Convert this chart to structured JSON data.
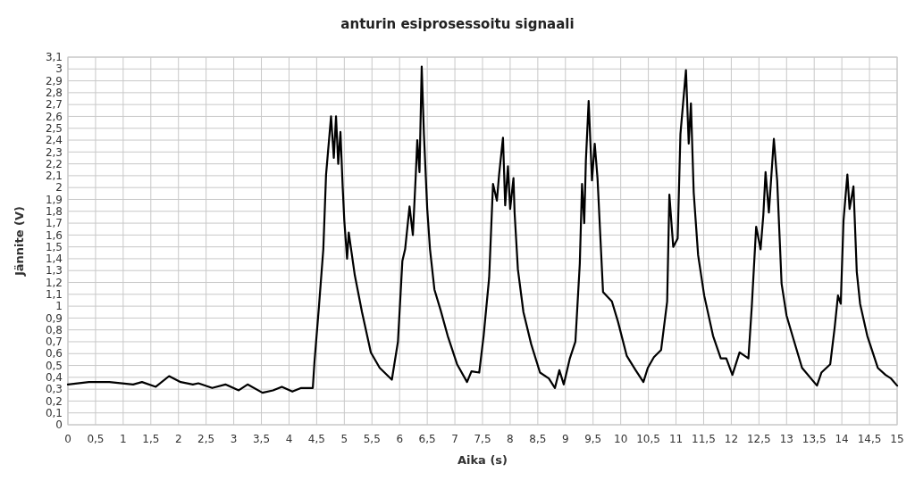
{
  "chart_data": {
    "type": "line",
    "title": "anturin esiprosessoitu signaali",
    "xlabel": "Aika (s)",
    "ylabel": "Jännite (V)",
    "xlim": [
      0,
      15
    ],
    "ylim": [
      0,
      3.1
    ],
    "grid": true,
    "marker": "none",
    "line_style": "solid",
    "xticks": [
      0,
      {
        "value": 0.5,
        "label": "0,5"
      },
      1,
      {
        "value": 1.5,
        "label": "1,5"
      },
      2,
      {
        "value": 2.5,
        "label": "2,5"
      },
      3,
      {
        "value": 3.5,
        "label": "3,5"
      },
      4,
      {
        "value": 4.5,
        "label": "4,5"
      },
      5,
      {
        "value": 5.5,
        "label": "5,5"
      },
      6,
      {
        "value": 6.5,
        "label": "6,5"
      },
      7,
      {
        "value": 7.5,
        "label": "7,5"
      },
      8,
      {
        "value": 8.5,
        "label": "8,5"
      },
      9,
      {
        "value": 9.5,
        "label": "9,5"
      },
      10,
      {
        "value": 10.5,
        "label": "10,5"
      },
      11,
      {
        "value": 11.5,
        "label": "11,5"
      },
      12,
      {
        "value": 12.5,
        "label": "12,5"
      },
      13,
      {
        "value": 13.5,
        "label": "13,5"
      },
      14,
      {
        "value": 14.5,
        "label": "14,5"
      },
      15
    ],
    "yticks": [
      0,
      {
        "value": 0.1,
        "label": "0,1"
      },
      {
        "value": 0.2,
        "label": "0,2"
      },
      {
        "value": 0.3,
        "label": "0,3"
      },
      {
        "value": 0.4,
        "label": "0,4"
      },
      {
        "value": 0.5,
        "label": "0,5"
      },
      {
        "value": 0.6,
        "label": "0,6"
      },
      {
        "value": 0.7,
        "label": "0,7"
      },
      {
        "value": 0.8,
        "label": "0,8"
      },
      {
        "value": 0.9,
        "label": "0,9"
      },
      1,
      {
        "value": 1.1,
        "label": "1,1"
      },
      {
        "value": 1.2,
        "label": "1,2"
      },
      {
        "value": 1.3,
        "label": "1,3"
      },
      {
        "value": 1.4,
        "label": "1,4"
      },
      {
        "value": 1.5,
        "label": "1,5"
      },
      {
        "value": 1.6,
        "label": "1,6"
      },
      {
        "value": 1.7,
        "label": "1,7"
      },
      {
        "value": 1.8,
        "label": "1,8"
      },
      {
        "value": 1.9,
        "label": "1,9"
      },
      2,
      {
        "value": 2.1,
        "label": "2,1"
      },
      {
        "value": 2.2,
        "label": "2,2"
      },
      {
        "value": 2.3,
        "label": "2,3"
      },
      {
        "value": 2.4,
        "label": "2,4"
      },
      {
        "value": 2.5,
        "label": "2,5"
      },
      {
        "value": 2.6,
        "label": "2,6"
      },
      {
        "value": 2.7,
        "label": "2,7"
      },
      {
        "value": 2.8,
        "label": "2,8"
      },
      {
        "value": 2.9,
        "label": "2,9"
      },
      3,
      {
        "value": 3.1,
        "label": "3,1"
      }
    ],
    "series": [
      {
        "color": "#000000",
        "x": [
          0,
          0.38,
          0.75,
          1.18,
          1.34,
          1.59,
          1.83,
          2.04,
          2.26,
          2.36,
          2.61,
          2.85,
          3.09,
          3.25,
          3.52,
          3.71,
          3.87,
          4.06,
          4.22,
          4.43,
          4.46,
          4.54,
          4.62,
          4.67,
          4.76,
          4.81,
          4.85,
          4.89,
          4.93,
          4.97,
          5.0,
          5.05,
          5.08,
          5.19,
          5.32,
          5.48,
          5.64,
          5.86,
          5.97,
          6.05,
          6.1,
          6.18,
          6.24,
          6.29,
          6.32,
          6.36,
          6.4,
          6.44,
          6.5,
          6.55,
          6.63,
          6.74,
          6.87,
          7.04,
          7.22,
          7.3,
          7.44,
          7.52,
          7.62,
          7.69,
          7.76,
          7.8,
          7.87,
          7.91,
          7.96,
          8.0,
          8.06,
          8.08,
          8.14,
          8.24,
          8.38,
          8.54,
          8.7,
          8.81,
          8.89,
          8.97,
          9.08,
          9.18,
          9.26,
          9.3,
          9.34,
          9.37,
          9.42,
          9.48,
          9.53,
          9.58,
          9.68,
          9.84,
          9.95,
          10.11,
          10.27,
          10.41,
          10.49,
          10.6,
          10.73,
          10.84,
          10.88,
          10.95,
          11.03,
          11.08,
          11.18,
          11.23,
          11.27,
          11.32,
          11.4,
          11.51,
          11.67,
          11.81,
          11.91,
          12.02,
          12.15,
          12.31,
          12.37,
          12.45,
          12.53,
          12.58,
          12.62,
          12.68,
          12.77,
          12.83,
          12.91,
          13.0,
          13.12,
          13.28,
          13.55,
          13.63,
          13.79,
          13.87,
          13.93,
          13.98,
          14.03,
          14.1,
          14.14,
          14.21,
          14.27,
          14.33,
          14.46,
          14.65,
          14.79,
          14.89,
          15.0
        ],
        "values": [
          0.34,
          0.36,
          0.36,
          0.34,
          0.36,
          0.32,
          0.41,
          0.36,
          0.34,
          0.35,
          0.31,
          0.34,
          0.29,
          0.34,
          0.27,
          0.29,
          0.32,
          0.28,
          0.31,
          0.31,
          0.53,
          0.99,
          1.48,
          2.11,
          2.6,
          2.25,
          2.6,
          2.2,
          2.47,
          2.01,
          1.72,
          1.4,
          1.62,
          1.26,
          0.95,
          0.61,
          0.48,
          0.38,
          0.7,
          1.38,
          1.48,
          1.84,
          1.6,
          2.08,
          2.4,
          2.13,
          3.02,
          2.45,
          1.82,
          1.48,
          1.14,
          0.97,
          0.75,
          0.51,
          0.36,
          0.45,
          0.44,
          0.75,
          1.24,
          2.03,
          1.89,
          2.11,
          2.42,
          1.85,
          2.18,
          1.82,
          2.08,
          1.79,
          1.31,
          0.95,
          0.68,
          0.44,
          0.39,
          0.31,
          0.46,
          0.34,
          0.56,
          0.7,
          1.36,
          2.03,
          1.7,
          2.23,
          2.73,
          2.06,
          2.37,
          2.08,
          1.12,
          1.04,
          0.87,
          0.58,
          0.46,
          0.36,
          0.48,
          0.57,
          0.63,
          1.04,
          1.94,
          1.5,
          1.57,
          2.45,
          2.99,
          2.37,
          2.71,
          1.96,
          1.43,
          1.09,
          0.75,
          0.56,
          0.56,
          0.42,
          0.61,
          0.56,
          0.99,
          1.67,
          1.48,
          1.77,
          2.13,
          1.79,
          2.41,
          2.06,
          1.19,
          0.92,
          0.73,
          0.48,
          0.33,
          0.44,
          0.51,
          0.82,
          1.09,
          1.02,
          1.72,
          2.11,
          1.82,
          2.01,
          1.29,
          1.02,
          0.75,
          0.48,
          0.42,
          0.39,
          0.33
        ]
      }
    ]
  }
}
